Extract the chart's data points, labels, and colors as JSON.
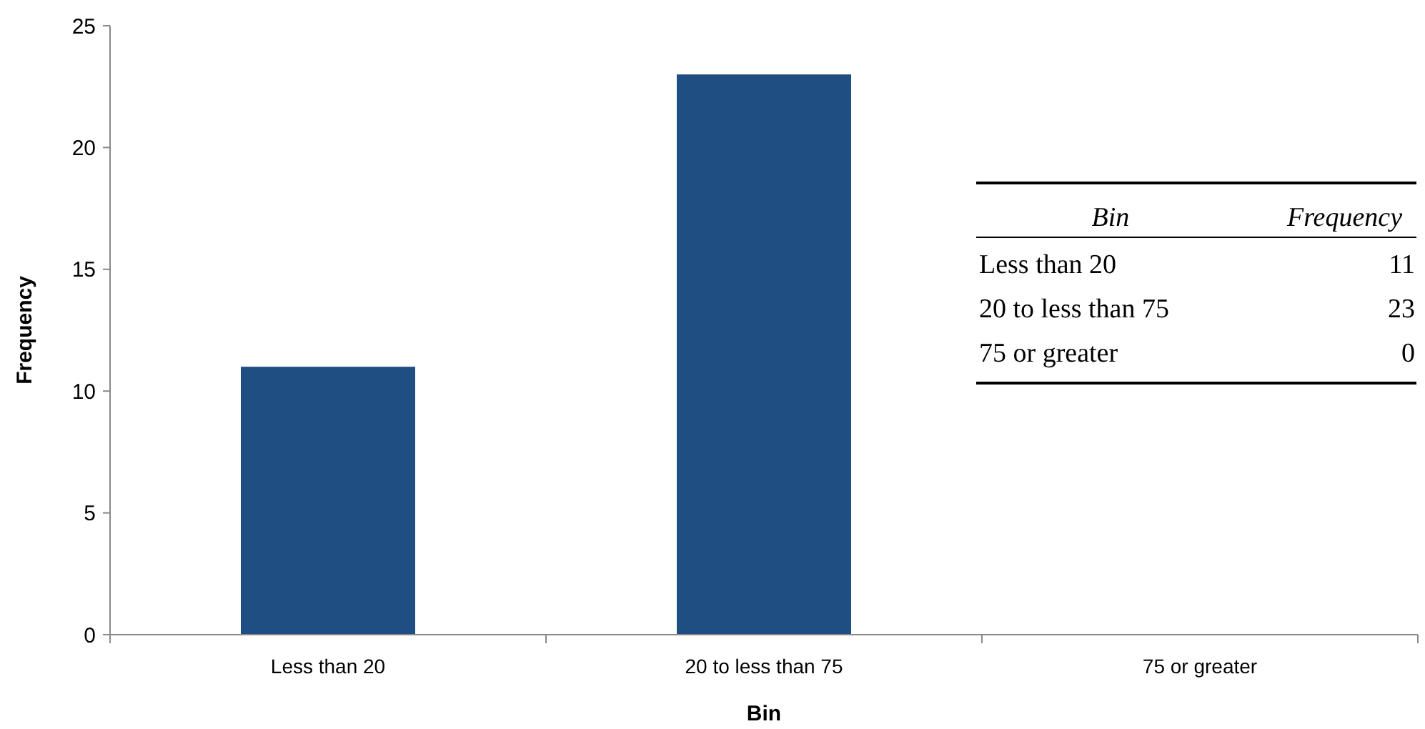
{
  "chart_data": [
    {
      "type": "bar",
      "xlabel": "Bin",
      "ylabel": "Frequency",
      "categories": [
        "Less than 20",
        "20 to less than 75",
        "75 or greater"
      ],
      "values": [
        11,
        23,
        0
      ],
      "color": "#1f4e82",
      "ylim": [
        0,
        25
      ],
      "yticks": [
        0,
        5,
        10,
        15,
        20,
        25
      ],
      "grid": false
    },
    {
      "type": "other",
      "annotations": [
        "Bin",
        "Frequency",
        "Less than 20",
        "11",
        "20 to less than 75",
        "23",
        "75 or greater",
        "0"
      ]
    }
  ]
}
